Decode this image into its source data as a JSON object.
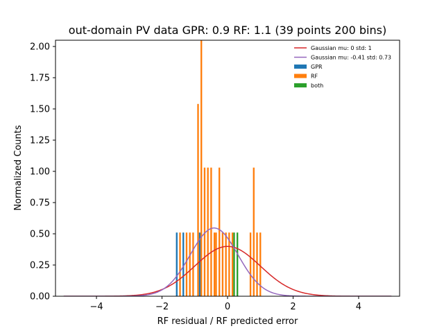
{
  "chart_data": {
    "type": "bar",
    "title": "out-domain PV data GPR: 0.9 RF: 1.1 (39 points 200 bins)",
    "xlabel": "RF residual / RF predicted error",
    "ylabel": "Normalized Counts",
    "xlim": [
      -5.25,
      5.25
    ],
    "ylim": [
      0,
      2.05
    ],
    "x_ticks": [
      -4,
      -2,
      0,
      2,
      4
    ],
    "x_tick_labels": [
      "−4",
      "−2",
      "0",
      "2",
      "4"
    ],
    "y_ticks": [
      0,
      0.25,
      0.5,
      0.75,
      1.0,
      1.25,
      1.5,
      1.75,
      2.0
    ],
    "y_tick_labels": [
      "0.00",
      "0.25",
      "0.50",
      "0.75",
      "1.00",
      "1.25",
      "1.50",
      "1.75",
      "2.00"
    ],
    "bin_width": 0.05,
    "grid": false,
    "legend_position": "top-right",
    "series": [
      {
        "name": "GPR",
        "kind": "bar",
        "color": "#1f77b4",
        "bars": [
          {
            "x": -1.55,
            "y": 0.51
          },
          {
            "x": -1.35,
            "y": 0.51
          },
          {
            "x": -0.85,
            "y": 0.51
          }
        ]
      },
      {
        "name": "RF",
        "kind": "bar",
        "color": "#ff7f0e",
        "bars": [
          {
            "x": -1.45,
            "y": 0.51
          },
          {
            "x": -1.25,
            "y": 0.51
          },
          {
            "x": -1.15,
            "y": 0.51
          },
          {
            "x": -1.05,
            "y": 0.51
          },
          {
            "x": -0.9,
            "y": 1.54
          },
          {
            "x": -0.8,
            "y": 2.05
          },
          {
            "x": -0.7,
            "y": 1.03
          },
          {
            "x": -0.6,
            "y": 1.03
          },
          {
            "x": -0.5,
            "y": 1.03
          },
          {
            "x": -0.4,
            "y": 0.51
          },
          {
            "x": -0.35,
            "y": 0.51
          },
          {
            "x": -0.25,
            "y": 1.03
          },
          {
            "x": -0.15,
            "y": 0.51
          },
          {
            "x": -0.05,
            "y": 0.51
          },
          {
            "x": 0.05,
            "y": 0.51
          },
          {
            "x": 0.15,
            "y": 0.51
          },
          {
            "x": 0.7,
            "y": 0.51
          },
          {
            "x": 0.8,
            "y": 1.03
          },
          {
            "x": 0.9,
            "y": 0.51
          },
          {
            "x": 1.0,
            "y": 0.51
          }
        ]
      },
      {
        "name": "both",
        "kind": "bar",
        "color": "#2ca02c",
        "bars": [
          {
            "x": 0.2,
            "y": 0.51
          },
          {
            "x": 0.3,
            "y": 0.51
          }
        ]
      },
      {
        "name": "Gaussian mu: 0 std: 1",
        "kind": "line",
        "color": "#d62728",
        "mu": 0,
        "std": 1,
        "x_range": [
          -5,
          5
        ]
      },
      {
        "name": "Gaussian mu: -0.41 std: 0.73",
        "kind": "line",
        "color": "#9467bd",
        "mu": -0.41,
        "std": 0.73,
        "x_range": [
          -5,
          5
        ]
      }
    ]
  }
}
